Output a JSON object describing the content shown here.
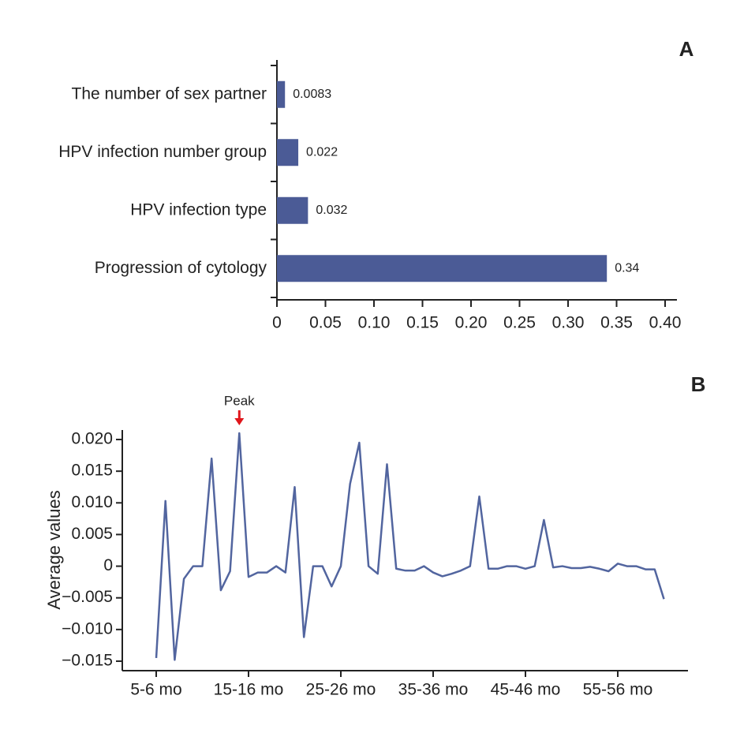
{
  "chart_data": [
    {
      "type": "hbar",
      "panel_label": "A",
      "categories": [
        "The number of sex partner",
        "HPV infection number group",
        "HPV infection type",
        "Progression of cytology"
      ],
      "values": [
        0.0083,
        0.022,
        0.032,
        0.34
      ],
      "color": "#4b5b96",
      "xlim": [
        0,
        0.4
      ],
      "xticks": [
        0,
        0.05,
        {
          "value": 0.1,
          "label": "0.10"
        },
        0.15,
        {
          "value": 0.2,
          "label": "0.20"
        },
        0.25,
        {
          "value": 0.3,
          "label": "0.30"
        },
        0.35,
        {
          "value": 0.4,
          "label": "0.40"
        }
      ]
    },
    {
      "type": "line",
      "panel_label": "B",
      "ylabel": "Average values",
      "annotation": "Peak",
      "annotation_color": "#e0161b",
      "categories": [
        "5-6 mo",
        null,
        null,
        null,
        null,
        null,
        null,
        null,
        null,
        null,
        "15-16 mo",
        null,
        null,
        null,
        null,
        null,
        null,
        null,
        null,
        null,
        "25-26 mo",
        null,
        null,
        null,
        null,
        null,
        null,
        null,
        null,
        null,
        "35-36 mo",
        null,
        null,
        null,
        null,
        null,
        null,
        null,
        null,
        null,
        "45-46 mo",
        null,
        null,
        null,
        null,
        null,
        null,
        null,
        null,
        null,
        "55-56 mo",
        null,
        null,
        null,
        null,
        null
      ],
      "values": [
        -0.0145,
        0.0103,
        -0.0148,
        -0.002,
        0,
        0,
        0.017,
        -0.0038,
        -0.0008,
        0.021,
        -0.0017,
        -0.001,
        -0.001,
        0,
        -0.001,
        0.0125,
        -0.0112,
        0,
        0,
        -0.0032,
        0,
        0.013,
        0.0195,
        0,
        -0.0012,
        0.0161,
        -0.0004,
        -0.0007,
        -0.0007,
        0,
        -0.001,
        -0.0016,
        -0.0012,
        -0.0007,
        0,
        0.011,
        -0.0004,
        -0.0004,
        0,
        0,
        -0.0004,
        0,
        0.0073,
        -0.0002,
        0,
        -0.0003,
        -0.0003,
        -0.0001,
        -0.0004,
        -0.0008,
        0.0004,
        0,
        0,
        -0.0005,
        -0.0005,
        -0.0052
      ],
      "color": "#52659f",
      "ylim": [
        -0.0165,
        0.0215
      ],
      "yticks": [
        {
          "value": 0.02,
          "label": "0.020"
        },
        0.015,
        {
          "value": 0.01,
          "label": "0.010"
        },
        0.005,
        0,
        {
          "value": -0.005,
          "label": "−0.005"
        },
        {
          "value": -0.01,
          "label": "−0.010"
        },
        {
          "value": -0.015,
          "label": "−0.015"
        }
      ]
    }
  ]
}
